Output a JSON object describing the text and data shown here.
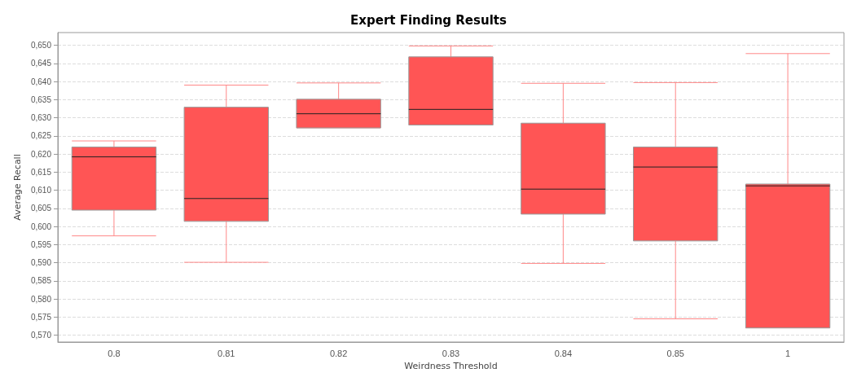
{
  "chart_data": {
    "type": "box",
    "title": "Expert Finding Results",
    "xlabel": "Weirdness Threshold",
    "ylabel": "Average Recall",
    "categories": [
      "0.8",
      "0.81",
      "0.82",
      "0.83",
      "0.84",
      "0.85",
      "1"
    ],
    "color": "#ff5555",
    "boxes": [
      {
        "low": 0.5974,
        "q1": 0.6045,
        "median": 0.6192,
        "q3": 0.6219,
        "high": 0.6236
      },
      {
        "low": 0.5901,
        "q1": 0.6014,
        "median": 0.6077,
        "q3": 0.6329,
        "high": 0.639
      },
      {
        "low": 0.6272,
        "q1": 0.6272,
        "median": 0.6311,
        "q3": 0.6351,
        "high": 0.6396
      },
      {
        "low": 0.628,
        "q1": 0.628,
        "median": 0.6323,
        "q3": 0.6468,
        "high": 0.6498
      },
      {
        "low": 0.5898,
        "q1": 0.6034,
        "median": 0.6103,
        "q3": 0.6285,
        "high": 0.6395
      },
      {
        "low": 0.5745,
        "q1": 0.596,
        "median": 0.6164,
        "q3": 0.6219,
        "high": 0.6397
      },
      {
        "low": 0.572,
        "q1": 0.572,
        "median": 0.6112,
        "q3": 0.6117,
        "high": 0.6477
      }
    ],
    "ylim": [
      0.5681,
      0.6535
    ],
    "yticks": [
      {
        "value": 0.57,
        "label": "0,570"
      },
      {
        "value": 0.575,
        "label": "0,575"
      },
      {
        "value": 0.58,
        "label": "0,580"
      },
      {
        "value": 0.585,
        "label": "0,585"
      },
      {
        "value": 0.59,
        "label": "0,590"
      },
      {
        "value": 0.595,
        "label": "0,595"
      },
      {
        "value": 0.6,
        "label": "0,600"
      },
      {
        "value": 0.605,
        "label": "0,605"
      },
      {
        "value": 0.61,
        "label": "0,610"
      },
      {
        "value": 0.615,
        "label": "0,615"
      },
      {
        "value": 0.62,
        "label": "0,620"
      },
      {
        "value": 0.625,
        "label": "0,625"
      },
      {
        "value": 0.63,
        "label": "0,630"
      },
      {
        "value": 0.635,
        "label": "0,635"
      },
      {
        "value": 0.64,
        "label": "0,640"
      },
      {
        "value": 0.645,
        "label": "0,645"
      },
      {
        "value": 0.65,
        "label": "0,650"
      }
    ],
    "grid": "y"
  }
}
